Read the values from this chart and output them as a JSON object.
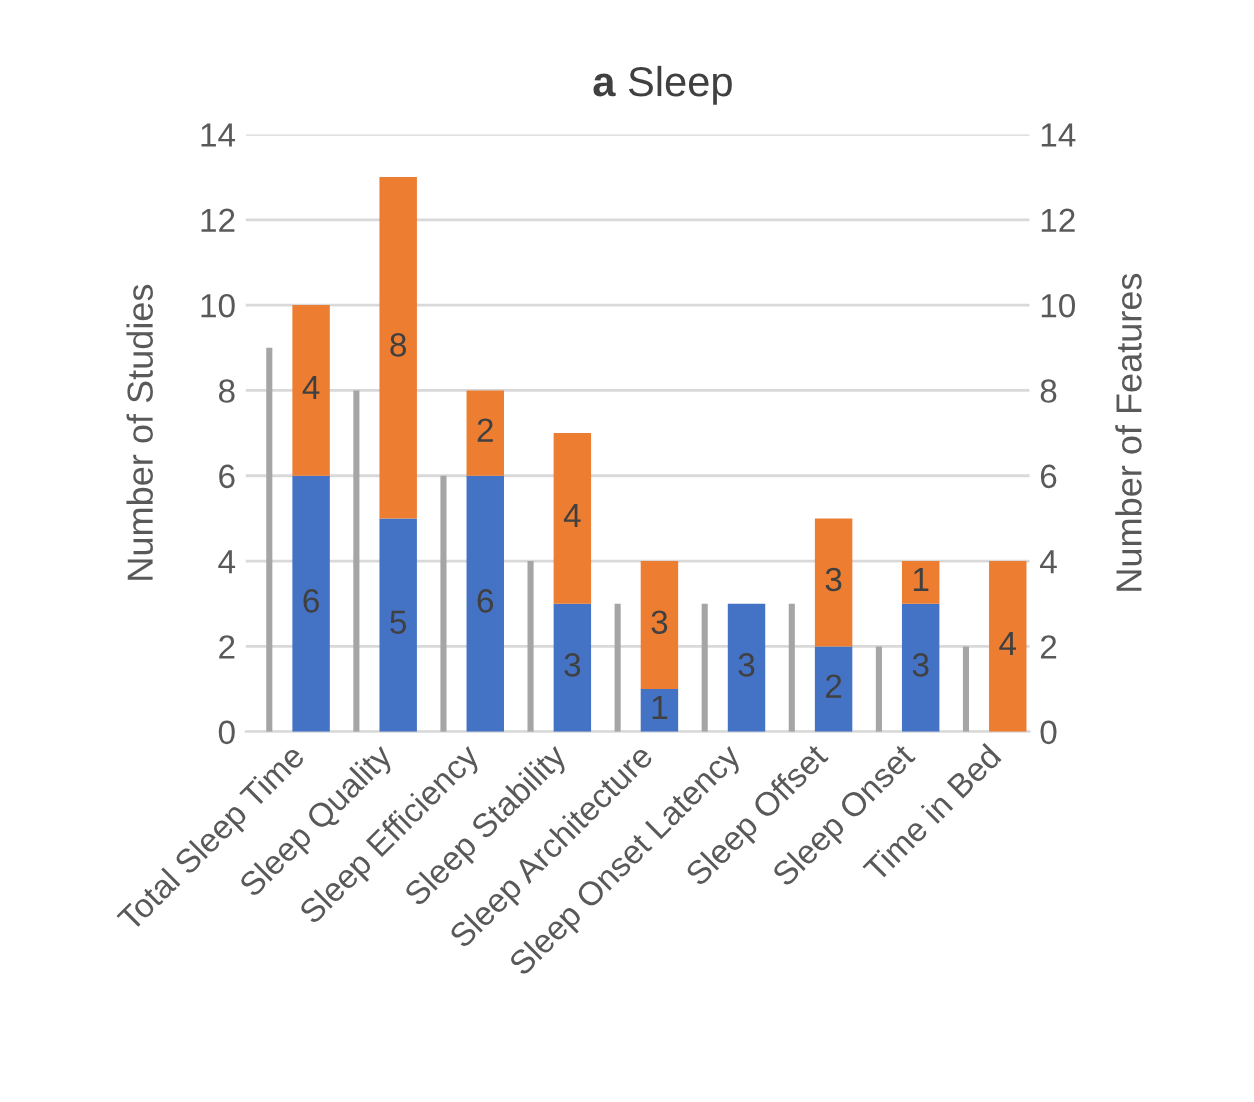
{
  "chart_data": {
    "type": "bar",
    "title": "a Sleep",
    "ylabel": "Number of Studies",
    "y2label": "Number of Features",
    "categories": [
      "Total Sleep Time",
      "Sleep Quality",
      "Sleep Efficiency",
      "Sleep Stability",
      "Sleep Architecture",
      "Sleep Onset Latency",
      "Sleep Offset",
      "Sleep Onset",
      "Time in Bed"
    ],
    "stacked": true,
    "series": [
      {
        "color": "#a5a5a5",
        "axis": "y",
        "values": [
          9,
          8,
          6,
          4,
          3,
          3,
          3,
          2,
          2
        ]
      },
      {
        "color": "#4472c4",
        "axis": "y2",
        "values": [
          6,
          5,
          6,
          3,
          1,
          3,
          2,
          3,
          null
        ],
        "value_labels": [
          "6",
          "5",
          "6",
          "3",
          "1",
          "3",
          "2",
          "3",
          null
        ]
      },
      {
        "color": "#ed7d31",
        "axis": "y2",
        "values": [
          4,
          8,
          2,
          4,
          3,
          null,
          3,
          1,
          4
        ],
        "value_labels": [
          "4",
          "8",
          "2",
          "4",
          "3",
          null,
          "3",
          "1",
          "4"
        ]
      }
    ],
    "ylim": [
      0,
      14
    ],
    "yticks": [
      0,
      2,
      4,
      6,
      8,
      10,
      12,
      14
    ],
    "y2lim": [
      0,
      14
    ],
    "y2ticks": [
      0,
      2,
      4,
      6,
      8,
      10,
      12,
      14
    ],
    "grid": "y",
    "legend": false
  }
}
